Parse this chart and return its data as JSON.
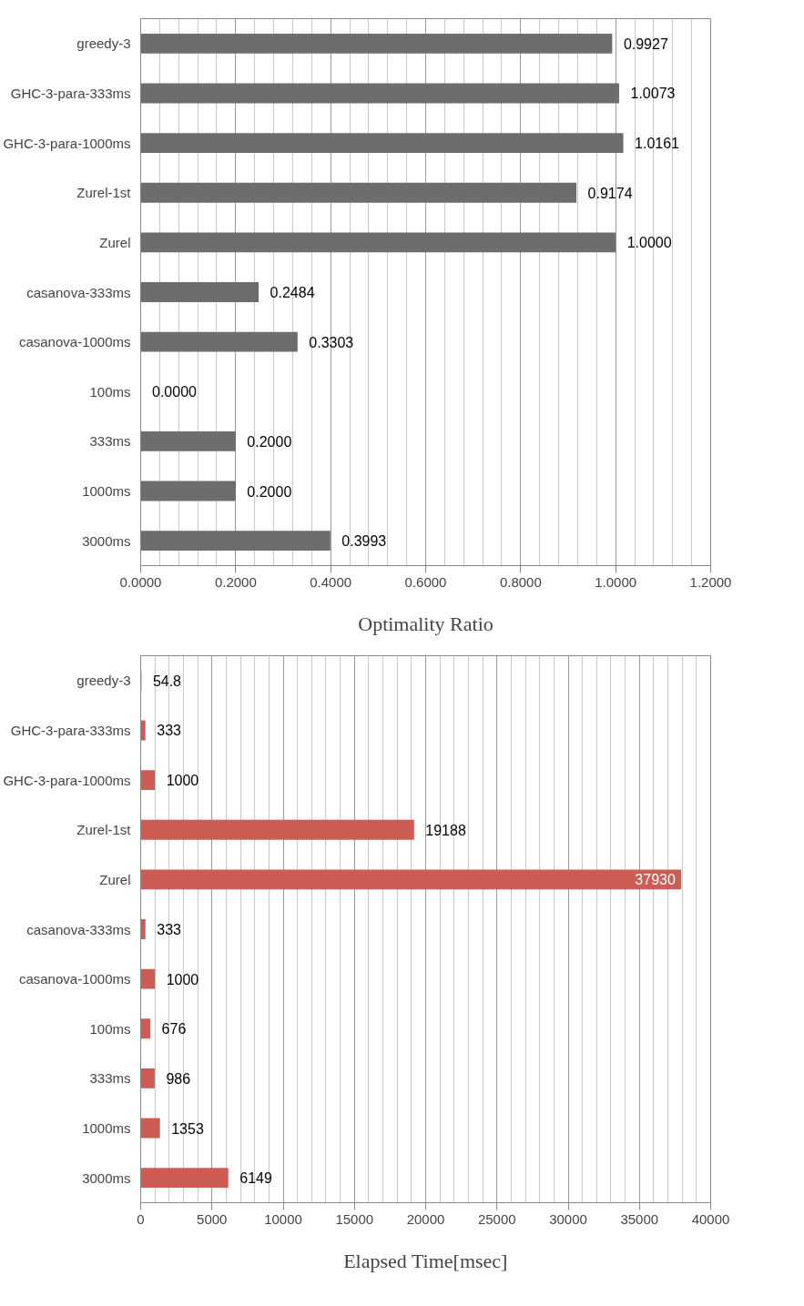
{
  "chart_data": [
    {
      "type": "bar",
      "orientation": "horizontal",
      "xlabel": "Optimality Ratio",
      "categories": [
        "greedy-3",
        "GHC-3-para-333ms",
        "GHC-3-para-1000ms",
        "Zurel-1st",
        "Zurel",
        "casanova-333ms",
        "casanova-1000ms",
        "100ms",
        "333ms",
        "1000ms",
        "3000ms"
      ],
      "values": [
        0.9927,
        1.0073,
        1.0161,
        0.9174,
        1.0,
        0.2484,
        0.3303,
        0.0,
        0.2,
        0.2,
        0.3993
      ],
      "value_labels": [
        "0.9927",
        "1.0073",
        "1.0161",
        "0.9174",
        "1.0000",
        "0.2484",
        "0.3303",
        "0.0000",
        "0.2000",
        "0.2000",
        "0.3993"
      ],
      "color": "#6d6d6d",
      "xlim": [
        0,
        1.2
      ],
      "xticks": [
        {
          "value": 0,
          "label": "0.0000"
        },
        {
          "value": 0.2,
          "label": "0.2000"
        },
        {
          "value": 0.4,
          "label": "0.4000"
        },
        {
          "value": 0.6,
          "label": "0.6000"
        },
        {
          "value": 0.8,
          "label": "0.8000"
        },
        {
          "value": 1.0,
          "label": "1.0000"
        },
        {
          "value": 1.2,
          "label": "1.2000"
        }
      ],
      "grid": "x"
    },
    {
      "type": "bar",
      "orientation": "horizontal",
      "xlabel": "Elapsed Time[msec]",
      "categories": [
        "greedy-3",
        "GHC-3-para-333ms",
        "GHC-3-para-1000ms",
        "Zurel-1st",
        "Zurel",
        "casanova-333ms",
        "casanova-1000ms",
        "100ms",
        "333ms",
        "1000ms",
        "3000ms"
      ],
      "values": [
        54.8,
        333,
        1000,
        19188,
        37930,
        333,
        1000,
        676,
        986,
        1353,
        6149
      ],
      "data_labels": true,
      "color": "#cd5c55",
      "xlim": [
        0,
        40000
      ],
      "xticks": [
        0,
        5000,
        10000,
        15000,
        20000,
        25000,
        30000,
        35000,
        40000
      ],
      "grid": "x"
    }
  ]
}
